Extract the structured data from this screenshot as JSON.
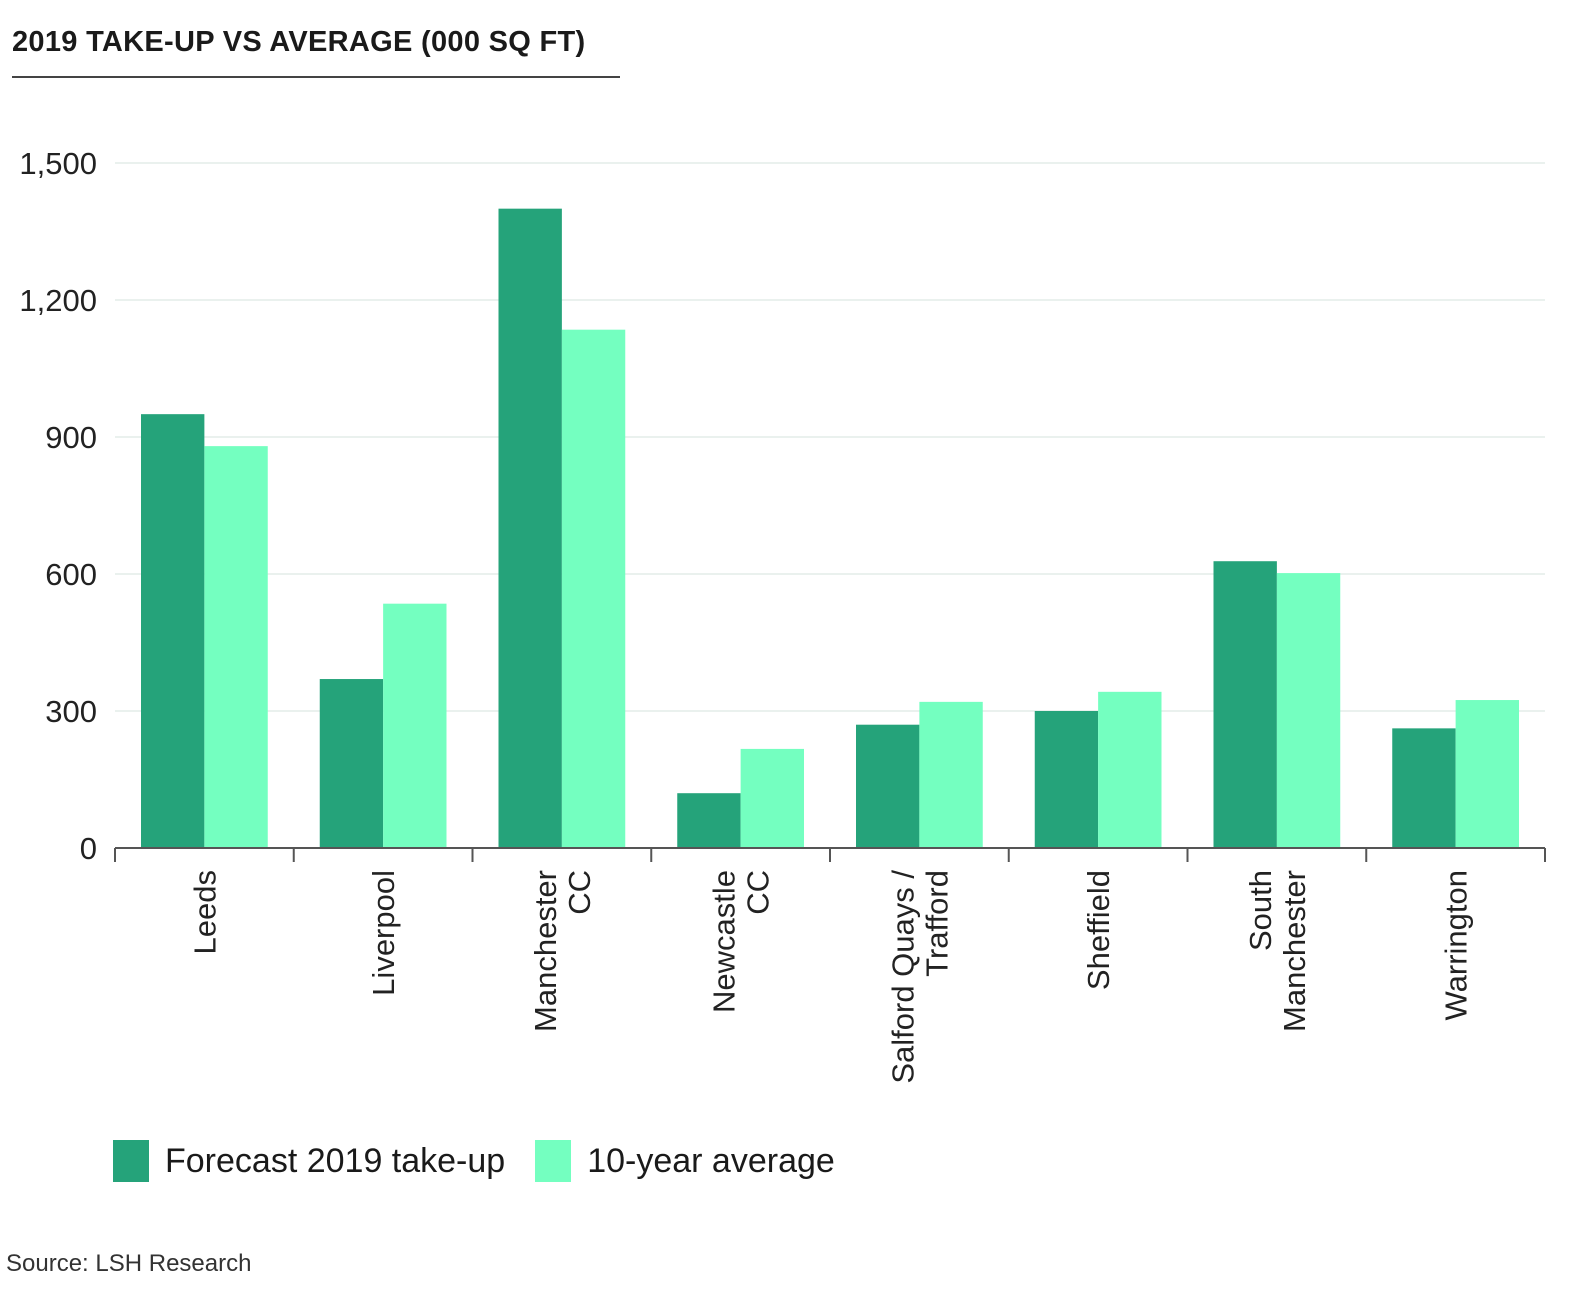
{
  "chart_data": {
    "type": "bar",
    "title": "2019 TAKE-UP VS AVERAGE (000 SQ FT)",
    "categories": [
      [
        "Leeds"
      ],
      [
        "Liverpool"
      ],
      [
        "Manchester",
        "CC"
      ],
      [
        "Newcastle",
        "CC"
      ],
      [
        "Salford Quays /",
        "Trafford"
      ],
      [
        "Sheffield"
      ],
      [
        "South",
        "Manchester"
      ],
      [
        "Warrington"
      ]
    ],
    "series": [
      {
        "name": "Forecast 2019 take-up",
        "color": "#25a37a",
        "values": [
          950,
          370,
          1400,
          120,
          270,
          300,
          628,
          262
        ]
      },
      {
        "name": "10-year average",
        "color": "#74ffc0",
        "values": [
          880,
          535,
          1135,
          217,
          320,
          342,
          602,
          324
        ]
      }
    ],
    "ylim": [
      0,
      1500
    ],
    "yticks": [
      0,
      300,
      600,
      900,
      1200,
      1500
    ],
    "ytick_labels": [
      "0",
      "300",
      "600",
      "900",
      "1,200",
      "1,500"
    ],
    "grid": "horizontal",
    "legend_position": "bottom-left",
    "source": "Source: LSH Research"
  }
}
